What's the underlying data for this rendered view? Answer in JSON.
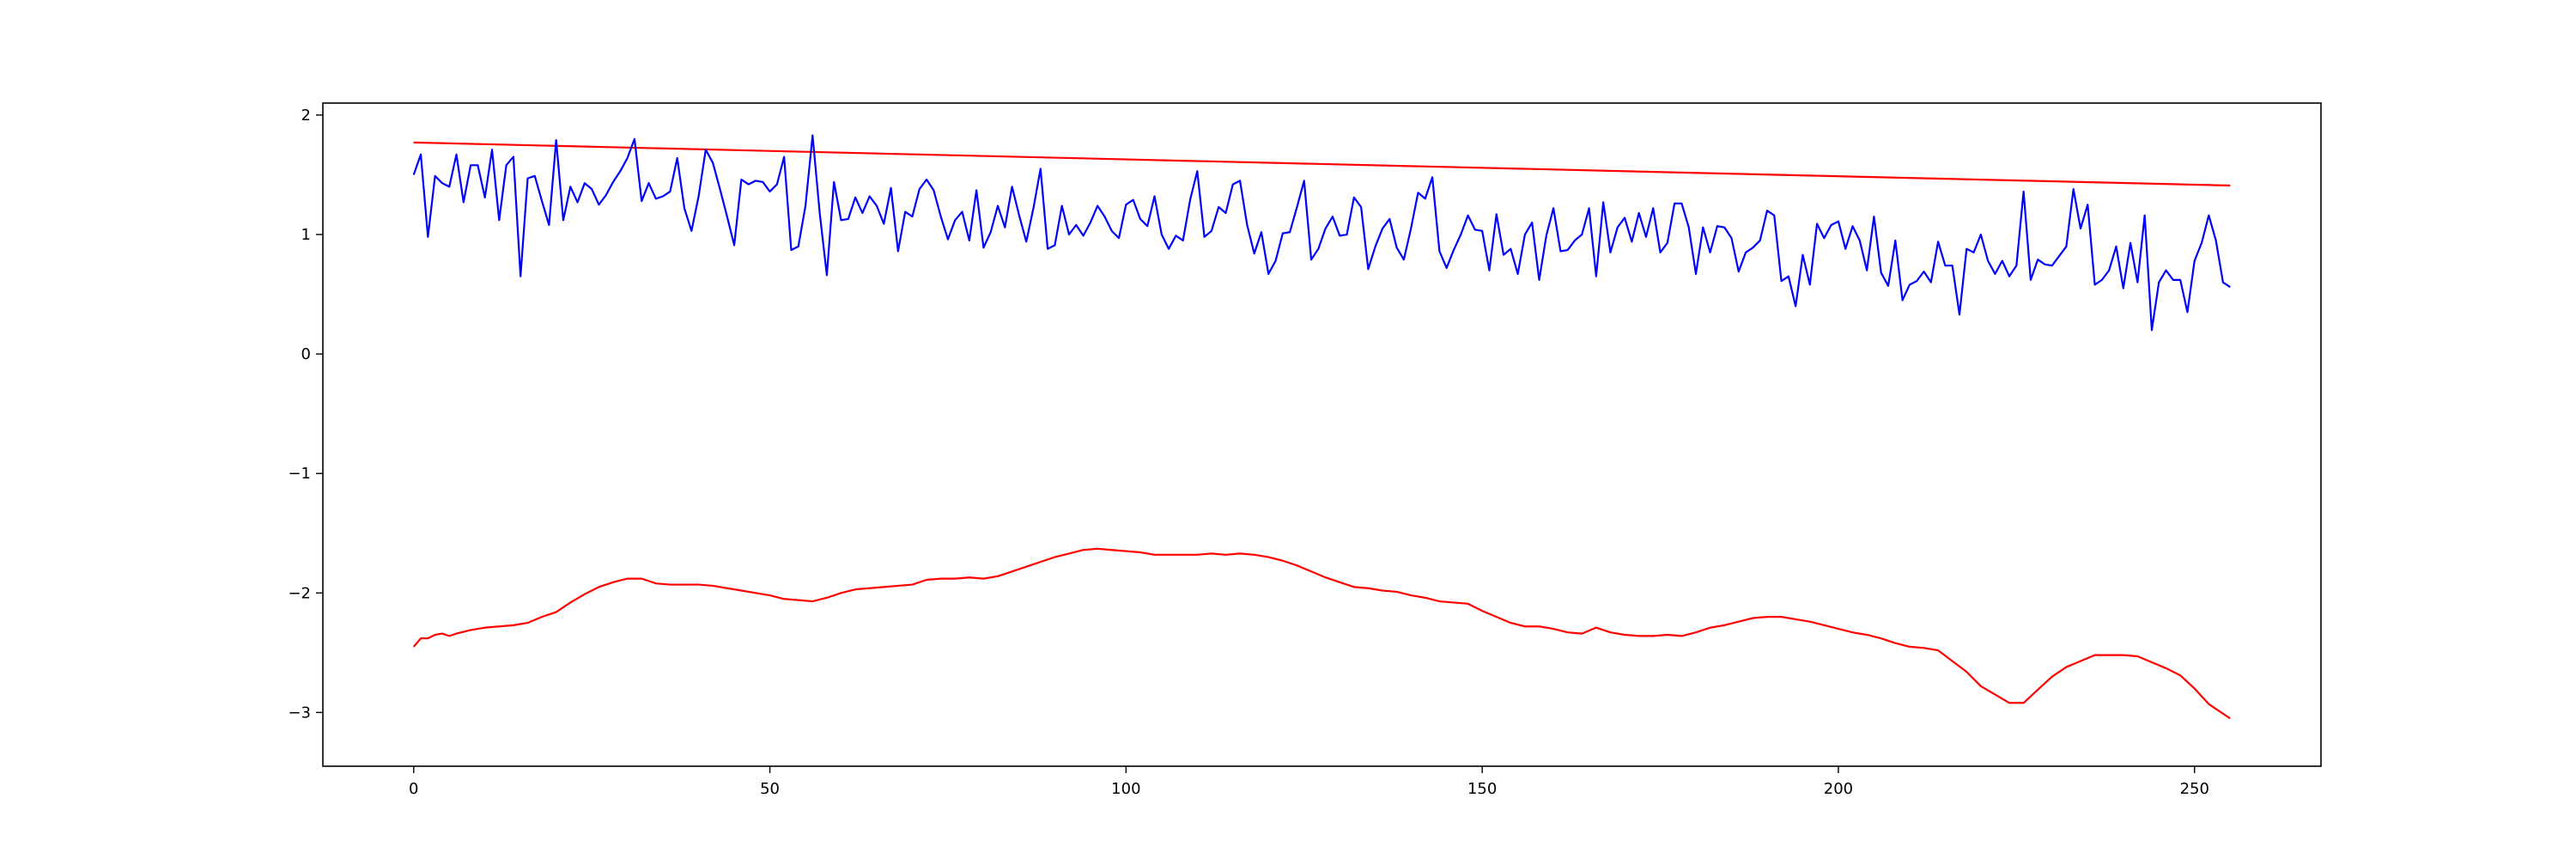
{
  "chart_data": {
    "type": "line",
    "title": "",
    "xlabel": "",
    "ylabel": "",
    "xlim": [
      -12.75,
      267.75
    ],
    "ylim": [
      -3.45,
      2.1
    ],
    "xticks": [
      0,
      50,
      100,
      150,
      200,
      250
    ],
    "yticks": [
      2,
      1,
      0,
      -1,
      -2,
      -3
    ],
    "ytick_labels": [
      "2",
      "1",
      "0",
      "−1",
      "−2",
      "−3"
    ],
    "grid": false,
    "legend": "none",
    "series": [
      {
        "color": "#ff0000",
        "style": "straight-line",
        "x": [
          0,
          255
        ],
        "y": [
          1.77,
          1.41
        ]
      },
      {
        "color": "#0000ff",
        "style": "noisy",
        "x_start": 0,
        "x_end": 255,
        "points": 256,
        "y": [
          1.5,
          1.67,
          0.98,
          1.49,
          1.43,
          1.4,
          1.67,
          1.27,
          1.58,
          1.58,
          1.31,
          1.71,
          1.12,
          1.58,
          1.65,
          0.65,
          1.47,
          1.49,
          1.28,
          1.08,
          1.79,
          1.12,
          1.4,
          1.27,
          1.43,
          1.38,
          1.25,
          1.33,
          1.44,
          1.53,
          1.64,
          1.8,
          1.28,
          1.43,
          1.3,
          1.32,
          1.36,
          1.64,
          1.22,
          1.03,
          1.32,
          1.71,
          1.6,
          1.38,
          1.15,
          0.91,
          1.46,
          1.42,
          1.45,
          1.44,
          1.36,
          1.42,
          1.65,
          0.87,
          0.9,
          1.24,
          1.83,
          1.18,
          0.66,
          1.44,
          1.12,
          1.13,
          1.31,
          1.18,
          1.32,
          1.24,
          1.09,
          1.39,
          0.86,
          1.19,
          1.15,
          1.38,
          1.46,
          1.37,
          1.15,
          0.96,
          1.12,
          1.19,
          0.95,
          1.37,
          0.89,
          1.02,
          1.24,
          1.06,
          1.4,
          1.16,
          0.94,
          1.22,
          1.55,
          0.88,
          0.91,
          1.24,
          1.0,
          1.08,
          0.99,
          1.1,
          1.24,
          1.15,
          1.03,
          0.97,
          1.25,
          1.29,
          1.13,
          1.07,
          1.32,
          1.0,
          0.88,
          0.99,
          0.95,
          1.29,
          1.53,
          0.98,
          1.03,
          1.23,
          1.18,
          1.42,
          1.45,
          1.08,
          0.84,
          1.02,
          0.67,
          0.78,
          1.01,
          1.02,
          1.23,
          1.45,
          0.79,
          0.88,
          1.05,
          1.15,
          0.99,
          1.0,
          1.31,
          1.23,
          0.71,
          0.9,
          1.05,
          1.13,
          0.89,
          0.79,
          1.05,
          1.35,
          1.3,
          1.48,
          0.86,
          0.72,
          0.87,
          1.0,
          1.16,
          1.04,
          1.03,
          0.7,
          1.17,
          0.83,
          0.88,
          0.67,
          1.0,
          1.1,
          0.62,
          0.99,
          1.22,
          0.86,
          0.87,
          0.95,
          1.0,
          1.22,
          0.65,
          1.27,
          0.85,
          1.06,
          1.14,
          0.94,
          1.18,
          0.98,
          1.22,
          0.85,
          0.93,
          1.26,
          1.26,
          1.06,
          0.67,
          1.06,
          0.85,
          1.07,
          1.06,
          0.97,
          0.69,
          0.85,
          0.89,
          0.95,
          1.2,
          1.16,
          0.61,
          0.65,
          0.4,
          0.83,
          0.58,
          1.09,
          0.97,
          1.08,
          1.11,
          0.88,
          1.07,
          0.95,
          0.7,
          1.15,
          0.68,
          0.57,
          0.95,
          0.45,
          0.58,
          0.61,
          0.69,
          0.6,
          0.94,
          0.74,
          0.74,
          0.33,
          0.88,
          0.85,
          1.0,
          0.78,
          0.67,
          0.78,
          0.65,
          0.74,
          1.36,
          0.62,
          0.79,
          0.75,
          0.74,
          0.82,
          0.9,
          1.38,
          1.05,
          1.25,
          0.58,
          0.62,
          0.7,
          0.9,
          0.55,
          0.93,
          0.6,
          1.16,
          0.2,
          0.6,
          0.7,
          0.62,
          0.62,
          0.35,
          0.78,
          0.93,
          1.16,
          0.95,
          0.6,
          0.56
        ]
      },
      {
        "color": "#ff0000",
        "style": "smooth",
        "x": [
          0,
          1,
          2,
          3,
          4,
          5,
          6,
          8,
          10,
          12,
          14,
          16,
          18,
          20,
          22,
          24,
          26,
          28,
          30,
          32,
          34,
          36,
          38,
          40,
          42,
          44,
          46,
          48,
          50,
          52,
          54,
          56,
          58,
          60,
          62,
          64,
          66,
          68,
          70,
          72,
          74,
          76,
          78,
          80,
          82,
          84,
          86,
          88,
          90,
          92,
          94,
          96,
          98,
          100,
          102,
          104,
          106,
          108,
          110,
          112,
          114,
          116,
          118,
          120,
          122,
          124,
          126,
          128,
          130,
          132,
          134,
          136,
          138,
          140,
          142,
          144,
          146,
          148,
          150,
          152,
          154,
          156,
          158,
          160,
          162,
          164,
          166,
          168,
          170,
          172,
          174,
          176,
          178,
          180,
          182,
          184,
          186,
          188,
          190,
          192,
          194,
          196,
          198,
          200,
          202,
          204,
          206,
          208,
          210,
          212,
          214,
          216,
          218,
          220,
          222,
          224,
          226,
          228,
          230,
          232,
          234,
          236,
          238,
          240,
          242,
          244,
          246,
          248,
          250,
          252,
          255
        ],
        "y": [
          -2.45,
          -2.38,
          -2.38,
          -2.35,
          -2.34,
          -2.36,
          -2.34,
          -2.31,
          -2.29,
          -2.28,
          -2.27,
          -2.25,
          -2.2,
          -2.16,
          -2.08,
          -2.01,
          -1.95,
          -1.91,
          -1.88,
          -1.88,
          -1.92,
          -1.93,
          -1.93,
          -1.93,
          -1.94,
          -1.96,
          -1.98,
          -2.0,
          -2.02,
          -2.05,
          -2.06,
          -2.07,
          -2.04,
          -2.0,
          -1.97,
          -1.96,
          -1.95,
          -1.94,
          -1.93,
          -1.89,
          -1.88,
          -1.88,
          -1.87,
          -1.88,
          -1.86,
          -1.82,
          -1.78,
          -1.74,
          -1.7,
          -1.67,
          -1.64,
          -1.63,
          -1.64,
          -1.65,
          -1.66,
          -1.68,
          -1.68,
          -1.68,
          -1.68,
          -1.67,
          -1.68,
          -1.67,
          -1.68,
          -1.7,
          -1.73,
          -1.77,
          -1.82,
          -1.87,
          -1.91,
          -1.95,
          -1.96,
          -1.98,
          -1.99,
          -2.02,
          -2.04,
          -2.07,
          -2.08,
          -2.09,
          -2.15,
          -2.2,
          -2.25,
          -2.28,
          -2.28,
          -2.3,
          -2.33,
          -2.34,
          -2.29,
          -2.33,
          -2.35,
          -2.36,
          -2.36,
          -2.35,
          -2.36,
          -2.33,
          -2.29,
          -2.27,
          -2.24,
          -2.21,
          -2.2,
          -2.2,
          -2.22,
          -2.24,
          -2.27,
          -2.3,
          -2.33,
          -2.35,
          -2.38,
          -2.42,
          -2.45,
          -2.46,
          -2.48,
          -2.57,
          -2.66,
          -2.78,
          -2.85,
          -2.92,
          -2.92,
          -2.81,
          -2.7,
          -2.62,
          -2.57,
          -2.52,
          -2.52,
          -2.52,
          -2.53,
          -2.58,
          -2.63,
          -2.69,
          -2.8,
          -2.93,
          -3.05
        ]
      }
    ]
  }
}
